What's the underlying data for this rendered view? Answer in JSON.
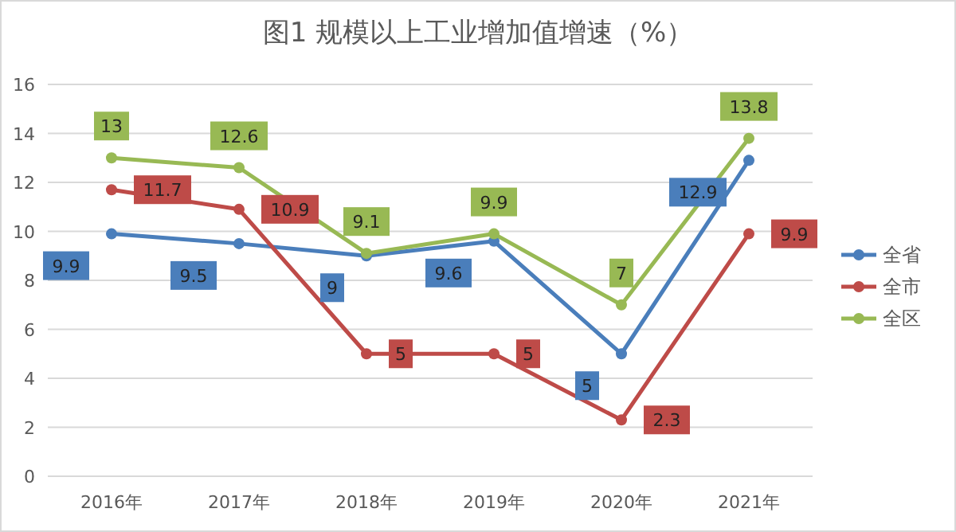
{
  "chart_data": {
    "type": "line",
    "title": "图1 规模以上工业增加值增速（%）",
    "categories": [
      "2016年",
      "2017年",
      "2018年",
      "2019年",
      "2020年",
      "2021年"
    ],
    "series": [
      {
        "name": "全省",
        "color": "#4a7ebb",
        "values": [
          9.9,
          9.5,
          9,
          9.6,
          5,
          12.9
        ]
      },
      {
        "name": "全市",
        "color": "#be4b48",
        "values": [
          11.7,
          10.9,
          5,
          5,
          2.3,
          9.9
        ]
      },
      {
        "name": "全区",
        "color": "#98b954",
        "values": [
          13,
          12.6,
          9.1,
          9.9,
          7,
          13.8
        ]
      }
    ],
    "ylim": [
      0,
      16
    ],
    "yticks": [
      0,
      2,
      4,
      6,
      8,
      10,
      12,
      14,
      16
    ],
    "grid": "y",
    "legend": "right",
    "marker": "circle",
    "line_style": "solid",
    "data_labels": true
  }
}
